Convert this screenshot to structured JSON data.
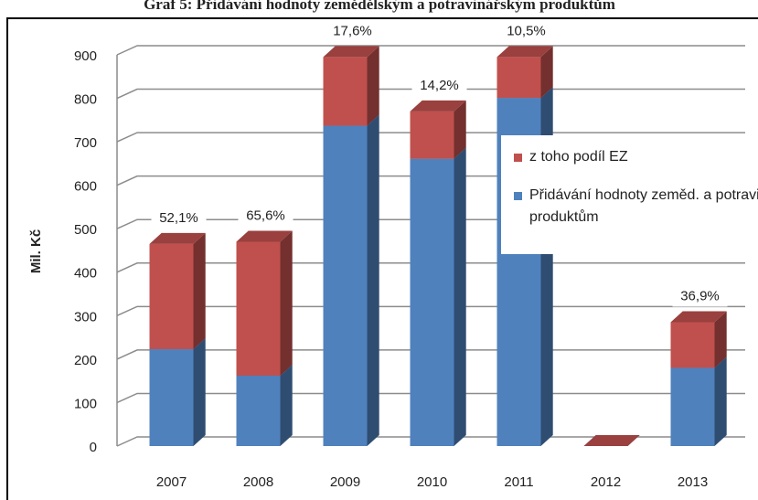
{
  "chart_data": {
    "type": "bar3d_stacked",
    "title": "Graf 5: Přidávání hodnoty zemědělským a potravinářským produktům",
    "y_label": "Mil. Kč",
    "categories": [
      "2007",
      "2008",
      "2009",
      "2010",
      "2011",
      "2012",
      "2013"
    ],
    "series": [
      {
        "name": "Přidávání hodnoty zeměd. a potravin. produktům",
        "color": "#4f81bd",
        "values": [
          223,
          162,
          737,
          661,
          801,
          0,
          180
        ]
      },
      {
        "name": "z toho podíl EZ",
        "color": "#c0504d",
        "values": [
          242,
          308,
          158,
          109,
          94,
          0,
          105
        ]
      }
    ],
    "annotations": [
      "52,1%",
      "65,6%",
      "17,6%",
      "14,2%",
      "10,5%",
      null,
      "36,9%"
    ],
    "ylim": [
      0,
      900
    ],
    "yticks": [
      0,
      100,
      200,
      300,
      400,
      500,
      600,
      700,
      800,
      900
    ],
    "grid": true,
    "legend": "upper right"
  }
}
